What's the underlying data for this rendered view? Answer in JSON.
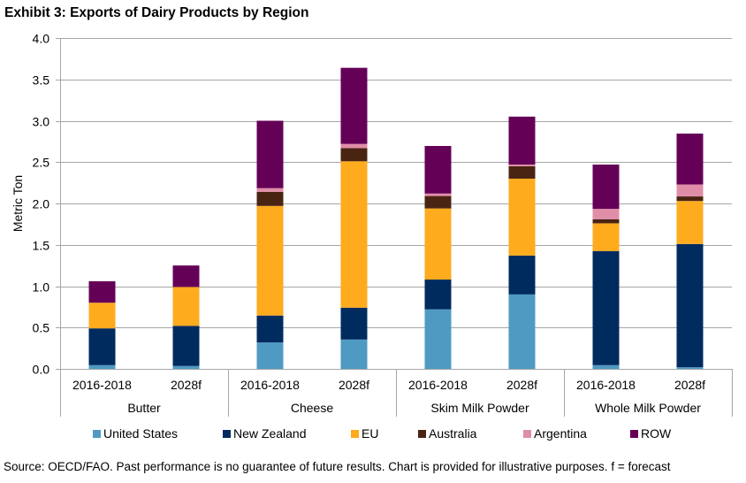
{
  "title": "Exhibit 3: Exports of Dairy Products by Region",
  "source_note": "Source: OECD/FAO. Past performance is no guarantee of future results. Chart is provided for illustrative purposes. f = forecast",
  "chart_data": {
    "type": "bar",
    "stacked": true,
    "title": "Exhibit 3: Exports of Dairy Products by Region",
    "xlabel": "",
    "ylabel": "Metric Ton",
    "ylim": [
      0,
      4.0
    ],
    "yticks": [
      0.0,
      0.5,
      1.0,
      1.5,
      2.0,
      2.5,
      3.0,
      3.5,
      4.0
    ],
    "ytick_labels": [
      "0.0",
      "0.5",
      "1.0",
      "1.5",
      "2.0",
      "2.5",
      "3.0",
      "3.5",
      "4.0"
    ],
    "grid": true,
    "legend_position": "bottom",
    "groups": [
      {
        "label": "Butter",
        "categories": [
          "2016-2018",
          "2028f"
        ]
      },
      {
        "label": "Cheese",
        "categories": [
          "2016-2018",
          "2028f"
        ]
      },
      {
        "label": "Skim Milk Powder",
        "categories": [
          "2016-2018",
          "2028f"
        ]
      },
      {
        "label": "Whole Milk Powder",
        "categories": [
          "2016-2018",
          "2028f"
        ]
      }
    ],
    "categories": [
      "Butter 2016-2018",
      "Butter 2028f",
      "Cheese 2016-2018",
      "Cheese 2028f",
      "Skim Milk Powder 2016-2018",
      "Skim Milk Powder 2028f",
      "Whole Milk Powder 2016-2018",
      "Whole Milk Powder 2028f"
    ],
    "series": [
      {
        "name": "United States",
        "color": "#4F9AC2",
        "values": [
          0.045,
          0.035,
          0.32,
          0.355,
          0.72,
          0.9,
          0.045,
          0.02
        ]
      },
      {
        "name": "New Zealand",
        "color": "#002B5F",
        "values": [
          0.445,
          0.485,
          0.325,
          0.385,
          0.36,
          0.47,
          1.38,
          1.49
        ]
      },
      {
        "name": "EU",
        "color": "#FEAB1E",
        "values": [
          0.31,
          0.47,
          1.325,
          1.77,
          0.86,
          0.93,
          0.335,
          0.52
        ]
      },
      {
        "name": "Australia",
        "color": "#4A2412",
        "values": [
          0.0,
          0.0,
          0.17,
          0.16,
          0.15,
          0.15,
          0.05,
          0.055
        ]
      },
      {
        "name": "Argentina",
        "color": "#E08EA8",
        "values": [
          0.0,
          0.0,
          0.045,
          0.05,
          0.03,
          0.02,
          0.125,
          0.145
        ]
      },
      {
        "name": "ROW",
        "color": "#650057",
        "values": [
          0.26,
          0.26,
          0.815,
          0.92,
          0.575,
          0.58,
          0.535,
          0.615
        ]
      }
    ],
    "totals": [
      1.06,
      1.25,
      3.0,
      3.64,
      2.695,
      3.05,
      2.47,
      2.845
    ]
  }
}
